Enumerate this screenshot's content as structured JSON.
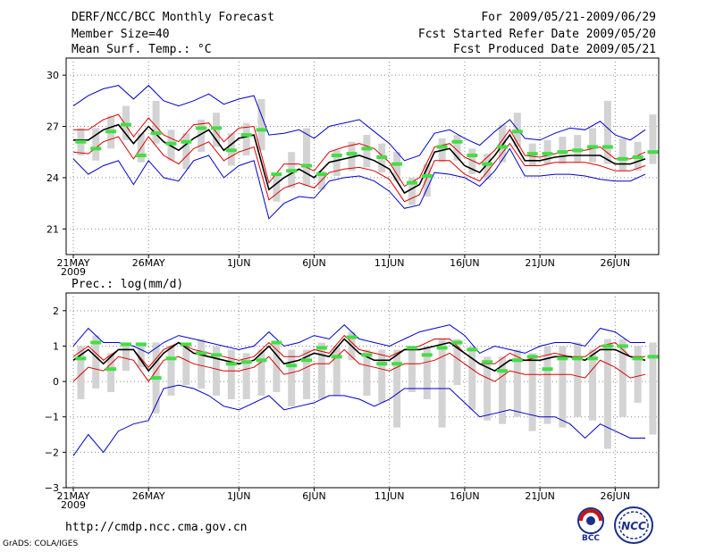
{
  "header": {
    "title": "DERF/NCC/BCC Monthly Forecast",
    "member_size": "Member Size=40",
    "variable": "Mean Surf. Temp.: °C",
    "period": "For 2009/05/21-2009/06/29",
    "started": "Fcst Started Refer Date 2009/05/20",
    "produced": "Fcst Produced Date 2009/05/21"
  },
  "footer": {
    "url": "http://cmdp.ncc.cma.gov.cn",
    "credit": "GrADS: COLA/IGES",
    "bcc_logo_text": "BCC",
    "ncc_logo_text": "NCC"
  },
  "colors": {
    "envelope": "#0000cc",
    "spread": "#dd0000",
    "mean": "#000000",
    "bar": "#d3d3d3",
    "marker": "#44dd44",
    "grid": "#888888"
  },
  "chart_data": [
    {
      "type": "line",
      "title": "Mean Surf. Temp.: °C",
      "days": 39,
      "x_tick_labels": [
        {
          "day": 0,
          "label": "21MAY",
          "sub": "2009"
        },
        {
          "day": 5,
          "label": "26MAY"
        },
        {
          "day": 11,
          "label": "1JUN"
        },
        {
          "day": 16,
          "label": "6JUN"
        },
        {
          "day": 21,
          "label": "11JUN"
        },
        {
          "day": 26,
          "label": "16JUN"
        },
        {
          "day": 31,
          "label": "21JUN"
        },
        {
          "day": 36,
          "label": "26JUN"
        }
      ],
      "ylim": [
        19.5,
        31
      ],
      "yticks": [
        "21",
        "24",
        "27",
        "30"
      ],
      "ytick_values": [
        21,
        24,
        27,
        30
      ],
      "series": [
        {
          "name": "upper envelope",
          "role": "envelope",
          "values": [
            28.2,
            28.8,
            29.2,
            29.4,
            28.6,
            29.4,
            28.5,
            28.2,
            28.5,
            28.9,
            28.3,
            28.6,
            28.8,
            26.5,
            26.6,
            26.8,
            26.3,
            27.0,
            27.2,
            27.4,
            26.7,
            26.0,
            25.0,
            25.3,
            26.6,
            26.8,
            26.3,
            25.9,
            26.7,
            27.4,
            26.3,
            26.2,
            26.6,
            26.9,
            26.8,
            27.3,
            26.5,
            26.2,
            26.8
          ]
        },
        {
          "name": "upper spread",
          "role": "spread",
          "values": [
            26.8,
            26.8,
            27.4,
            27.7,
            26.4,
            27.5,
            26.5,
            26.1,
            27.1,
            27.2,
            26.1,
            26.9,
            27.0,
            23.7,
            24.8,
            24.8,
            24.4,
            25.5,
            25.8,
            26.0,
            25.7,
            24.9,
            23.5,
            24.0,
            25.8,
            26.0,
            25.2,
            24.8,
            25.6,
            26.8,
            25.3,
            25.2,
            25.4,
            25.6,
            25.6,
            25.8,
            25.1,
            25.1,
            25.5
          ]
        },
        {
          "name": "ensemble mean",
          "role": "mean",
          "values": [
            26.2,
            26.2,
            26.8,
            27.1,
            26.0,
            27.0,
            26.1,
            25.6,
            26.3,
            26.8,
            25.6,
            26.3,
            26.5,
            23.3,
            24.0,
            24.5,
            24.0,
            24.9,
            25.1,
            25.3,
            25.0,
            24.5,
            23.1,
            23.6,
            25.5,
            25.7,
            24.7,
            24.3,
            25.3,
            26.5,
            25.0,
            25.0,
            25.2,
            25.3,
            25.3,
            25.3,
            24.8,
            24.8,
            25.1
          ]
        },
        {
          "name": "lower spread",
          "role": "spread",
          "values": [
            25.5,
            25.4,
            26.1,
            26.4,
            25.1,
            26.4,
            25.3,
            24.8,
            25.7,
            26.1,
            25.0,
            25.5,
            25.8,
            22.7,
            23.4,
            23.7,
            23.4,
            24.3,
            24.5,
            24.6,
            24.4,
            23.9,
            22.6,
            23.0,
            25.0,
            25.0,
            24.2,
            23.8,
            24.9,
            26.0,
            24.7,
            24.7,
            24.9,
            24.9,
            24.9,
            24.7,
            24.4,
            24.4,
            24.7
          ]
        },
        {
          "name": "lower envelope",
          "role": "envelope",
          "values": [
            25.1,
            24.2,
            24.7,
            25.0,
            23.6,
            25.0,
            24.0,
            23.8,
            25.0,
            25.3,
            24.0,
            24.7,
            25.0,
            21.6,
            22.5,
            22.9,
            22.8,
            23.8,
            24.0,
            24.1,
            23.8,
            23.2,
            22.2,
            22.4,
            24.3,
            24.2,
            24.0,
            23.5,
            24.4,
            25.7,
            24.1,
            24.1,
            24.2,
            24.2,
            24.1,
            23.9,
            23.8,
            23.8,
            24.2
          ]
        }
      ],
      "bars": {
        "low": [
          25.3,
          25.0,
          25.7,
          26.2,
          24.9,
          26.0,
          25.0,
          24.5,
          25.5,
          25.8,
          24.7,
          25.3,
          25.6,
          22.6,
          23.4,
          23.5,
          23.3,
          24.1,
          24.4,
          24.6,
          24.3,
          23.8,
          22.4,
          22.9,
          24.9,
          25.0,
          24.2,
          23.9,
          24.9,
          25.8,
          24.7,
          24.8,
          24.8,
          24.9,
          24.9,
          24.8,
          24.4,
          24.4,
          24.8
        ],
        "high": [
          26.9,
          26.9,
          27.6,
          28.2,
          26.6,
          28.5,
          26.8,
          26.6,
          27.4,
          27.8,
          26.6,
          27.2,
          28.6,
          24.1,
          25.5,
          26.9,
          24.4,
          25.6,
          26.1,
          26.5,
          26.0,
          25.5,
          24.0,
          24.8,
          26.3,
          26.5,
          25.7,
          25.4,
          27.1,
          27.8,
          26.0,
          26.2,
          26.4,
          26.5,
          26.9,
          28.5,
          26.3,
          26.1,
          27.7
        ]
      },
      "markers": [
        26.1,
        25.7,
        26.7,
        27.1,
        25.3,
        26.6,
        26.0,
        26.1,
        26.9,
        26.9,
        25.6,
        26.5,
        26.8,
        24.2,
        24.4,
        24.7,
        24.2,
        25.3,
        25.4,
        25.7,
        25.2,
        24.8,
        23.7,
        24.1,
        25.8,
        26.1,
        25.3,
        24.8,
        25.8,
        26.7,
        25.4,
        25.4,
        25.5,
        25.6,
        25.8,
        25.8,
        25.1,
        25.2,
        25.5
      ]
    },
    {
      "type": "line",
      "title": "Prec.: log(mm/d)",
      "days": 39,
      "x_tick_labels": [
        {
          "day": 0,
          "label": "21MAY",
          "sub": "2009"
        },
        {
          "day": 5,
          "label": "26MAY"
        },
        {
          "day": 11,
          "label": "1JUN"
        },
        {
          "day": 16,
          "label": "6JUN"
        },
        {
          "day": 21,
          "label": "11JUN"
        },
        {
          "day": 26,
          "label": "16JUN"
        },
        {
          "day": 31,
          "label": "21JUN"
        },
        {
          "day": 36,
          "label": "26JUN"
        }
      ],
      "ylim": [
        -3,
        2.5
      ],
      "yticks": [
        "−3",
        "−2",
        "−1",
        "0",
        "1",
        "2"
      ],
      "ytick_values": [
        -3,
        -2,
        -1,
        0,
        1,
        2
      ],
      "series": [
        {
          "name": "upper envelope",
          "role": "envelope",
          "values": [
            1.0,
            1.5,
            1.1,
            1.1,
            1.0,
            0.8,
            1.1,
            1.3,
            1.2,
            1.1,
            1.0,
            0.9,
            1.0,
            1.4,
            1.0,
            1.1,
            1.3,
            1.2,
            1.6,
            1.2,
            1.1,
            1.0,
            1.2,
            1.4,
            1.5,
            1.6,
            1.3,
            0.8,
            1.0,
            0.9,
            0.8,
            1.0,
            1.1,
            1.1,
            1.0,
            1.5,
            1.4,
            1.1,
            1.1
          ]
        },
        {
          "name": "upper spread",
          "role": "spread",
          "values": [
            0.7,
            1.0,
            0.6,
            0.9,
            0.9,
            0.4,
            0.9,
            1.1,
            0.9,
            0.8,
            0.7,
            0.6,
            0.7,
            1.1,
            0.7,
            0.7,
            0.9,
            0.8,
            1.3,
            0.9,
            0.8,
            0.7,
            0.9,
            1.0,
            1.2,
            1.2,
            0.8,
            0.5,
            0.5,
            0.8,
            0.6,
            0.7,
            0.8,
            0.7,
            0.7,
            1.0,
            1.1,
            0.7,
            0.7
          ]
        },
        {
          "name": "ensemble mean",
          "role": "mean",
          "values": [
            0.6,
            0.9,
            0.5,
            0.9,
            0.9,
            0.3,
            0.8,
            1.1,
            0.8,
            0.7,
            0.6,
            0.5,
            0.6,
            1.0,
            0.5,
            0.6,
            0.8,
            0.7,
            1.2,
            0.8,
            0.6,
            0.6,
            0.9,
            0.9,
            1.0,
            1.1,
            0.8,
            0.5,
            0.3,
            0.6,
            0.6,
            0.6,
            0.7,
            0.7,
            0.6,
            0.9,
            0.9,
            0.7,
            0.6
          ]
        },
        {
          "name": "lower spread",
          "role": "spread",
          "values": [
            0.0,
            0.4,
            0.3,
            0.7,
            0.6,
            0.0,
            0.6,
            0.7,
            0.5,
            0.4,
            0.3,
            0.3,
            0.4,
            0.7,
            0.2,
            0.3,
            0.5,
            0.5,
            0.9,
            0.5,
            0.4,
            0.3,
            0.5,
            0.5,
            0.6,
            0.8,
            0.5,
            0.2,
            0.0,
            0.3,
            0.2,
            0.2,
            0.2,
            0.2,
            0.1,
            0.6,
            0.4,
            0.1,
            0.2
          ]
        },
        {
          "name": "lower envelope",
          "role": "envelope",
          "values": [
            -2.1,
            -1.5,
            -2.0,
            -1.4,
            -1.2,
            -1.1,
            -0.2,
            -0.1,
            -0.2,
            -0.4,
            -0.7,
            -0.8,
            -0.6,
            -0.4,
            -0.8,
            -0.7,
            -0.6,
            -0.4,
            -0.4,
            -0.5,
            -0.7,
            -0.5,
            -0.2,
            -0.2,
            -0.2,
            -0.2,
            -0.6,
            -1.0,
            -0.9,
            -0.8,
            -0.9,
            -1.0,
            -1.0,
            -1.2,
            -1.6,
            -1.2,
            -1.4,
            -1.6,
            -1.6
          ]
        }
      ],
      "bars": {
        "low": [
          -0.5,
          -0.2,
          -0.3,
          0.3,
          0.4,
          -0.9,
          -0.4,
          -0.1,
          -0.2,
          -0.4,
          -0.5,
          -0.5,
          -0.4,
          -0.3,
          -0.7,
          -0.5,
          -0.5,
          -0.4,
          0.6,
          -0.4,
          -0.6,
          -1.3,
          -0.3,
          -0.5,
          -1.3,
          -0.1,
          -0.8,
          -1.1,
          -1.2,
          -1.0,
          -1.4,
          -1.2,
          -1.3,
          -1.0,
          -1.1,
          -1.9,
          -1.0,
          -0.6,
          -1.5
        ],
        "high": [
          1.0,
          1.3,
          0.8,
          1.1,
          1.1,
          1.1,
          1.0,
          1.1,
          1.2,
          1.0,
          0.9,
          0.8,
          0.9,
          1.1,
          0.9,
          0.9,
          1.1,
          1.0,
          1.4,
          0.9,
          0.9,
          0.9,
          1.0,
          1.0,
          1.2,
          1.2,
          1.0,
          0.7,
          0.7,
          0.9,
          0.8,
          1.0,
          1.0,
          1.1,
          0.9,
          1.2,
          1.2,
          1.0,
          1.1
        ]
      },
      "markers": [
        0.65,
        1.1,
        0.35,
        1.05,
        1.05,
        0.1,
        0.65,
        1.05,
        0.8,
        0.75,
        0.5,
        0.55,
        0.6,
        1.1,
        0.45,
        0.6,
        0.95,
        0.7,
        1.25,
        0.75,
        0.5,
        0.5,
        0.95,
        0.75,
        0.95,
        1.1,
        0.9,
        0.55,
        0.3,
        0.6,
        0.7,
        0.35,
        0.65,
        0.65,
        0.65,
        1.0,
        1.0,
        0.65,
        0.7
      ]
    }
  ]
}
